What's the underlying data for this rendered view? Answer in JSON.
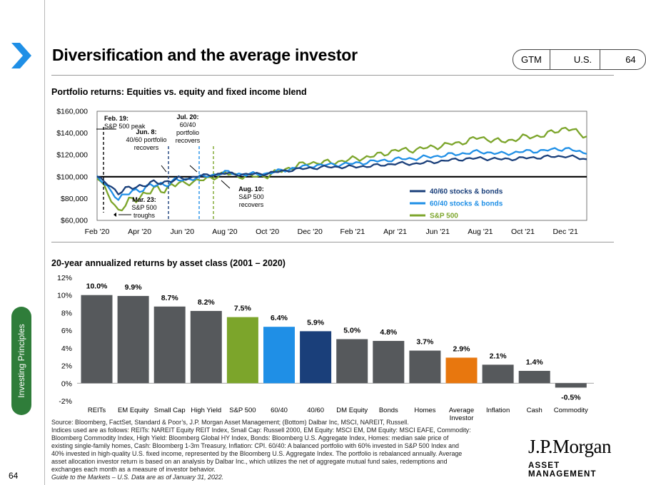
{
  "header": {
    "title": "Diversification and the average investor",
    "tags": [
      "GTM",
      "U.S.",
      "64"
    ]
  },
  "sidebar": {
    "tab_label": "Investing Principles",
    "page_number": "64"
  },
  "top_section": {
    "heading": "Portfolio returns: Equities vs. equity and fixed income blend"
  },
  "bottom_section": {
    "heading": "20-year annualized returns by asset class (2001 – 2020)"
  },
  "footer": {
    "source_lines": [
      "Source: Bloomberg, FactSet, Standard & Poor’s, J.P. Morgan Asset Management; (Bottom) Dalbar Inc, MSCI, NAREIT, Russell.",
      "Indices used are as follows: REITs: NAREIT Equity REIT Index, Small Cap: Russell 2000, EM Equity: MSCI EM, DM Equity: MSCI EAFE, Commodity:",
      "Bloomberg Commodity Index, High Yield: Bloomberg Global HY Index, Bonds: Bloomberg U.S. Aggregate Index, Homes: median sale price of",
      "existing single-family homes, Cash: Bloomberg 1-3m Treasury, Inflation: CPI. 60/40: A balanced portfolio with 60% invested in S&P 500 Index and",
      "40% invested in high-quality U.S. fixed income, represented by the Bloomberg U.S. Aggregate Index. The portfolio is rebalanced annually. Average",
      "asset allocation investor return is based on an analysis by Dalbar Inc., which utilizes the net of aggregate mutual fund sales, redemptions and",
      "exchanges each month as a measure of investor behavior."
    ],
    "as_of": "Guide to the Markets – U.S. Data are as of January 31, 2022.",
    "logo_name": "J.P.Morgan",
    "logo_sub": "ASSET MANAGEMENT"
  },
  "colors": {
    "dark_blue": "#1a3f7a",
    "light_blue": "#1f8fe6",
    "green": "#7ca52b",
    "gray_bar": "#56595c",
    "orange": "#e8770e",
    "sidebar_green": "#2f7d3a",
    "chevron_blue": "#1f8fe6"
  },
  "chart_data": [
    {
      "type": "line",
      "title": "Portfolio returns: Equities vs. equity and fixed income blend",
      "ylim": [
        60000,
        160000
      ],
      "yticks": [
        "$60,000",
        "$80,000",
        "$100,000",
        "$120,000",
        "$140,000",
        "$160,000"
      ],
      "xticks": [
        "Feb '20",
        "Apr '20",
        "Jun '20",
        "Aug '20",
        "Oct '20",
        "Dec '20",
        "Feb '21",
        "Apr '21",
        "Jun '21",
        "Aug '21",
        "Oct '21",
        "Dec '21"
      ],
      "x_months": [
        "Feb '20",
        "Mar '20",
        "Apr '20",
        "May '20",
        "Jun '20",
        "Jul '20",
        "Aug '20",
        "Sep '20",
        "Oct '20",
        "Nov '20",
        "Dec '20",
        "Jan '21",
        "Feb '21",
        "Mar '21",
        "Apr '21",
        "May '21",
        "Jun '21",
        "Jul '21",
        "Aug '21",
        "Sep '21",
        "Oct '21",
        "Nov '21",
        "Dec '21",
        "Jan '22"
      ],
      "baseline": 100000,
      "series": [
        {
          "name": "40/60 stocks & bonds",
          "color": "#1a3f7a",
          "values": [
            100000,
            86000,
            92000,
            95000,
            98000,
            101000,
            103000,
            102000,
            103000,
            106000,
            108000,
            109000,
            109000,
            110000,
            112000,
            112000,
            114000,
            116000,
            117000,
            116000,
            117000,
            118000,
            119000,
            116000
          ]
        },
        {
          "name": "60/40 stocks & bonds",
          "color": "#1f8fe6",
          "values": [
            100000,
            80000,
            89000,
            93000,
            97000,
            100000,
            104000,
            102000,
            103000,
            107000,
            110000,
            111000,
            112000,
            114000,
            116000,
            117000,
            119000,
            121000,
            123000,
            121000,
            123000,
            124000,
            126000,
            121000
          ]
        },
        {
          "name": "S&P 500",
          "color": "#7ca52b",
          "values": [
            100000,
            69000,
            83000,
            89000,
            94000,
            97000,
            103000,
            100000,
            101000,
            108000,
            113000,
            113000,
            116000,
            119000,
            124000,
            125000,
            128000,
            131000,
            136000,
            132000,
            136000,
            138000,
            145000,
            137000
          ]
        }
      ],
      "annotations": [
        {
          "text": [
            "Feb. 19:",
            "S&P 500 peak"
          ]
        },
        {
          "text": [
            "Mar. 23:",
            "S&P 500",
            "troughs"
          ]
        },
        {
          "text": [
            "Jun. 8:",
            "40/60 portfolio",
            "recovers"
          ]
        },
        {
          "text": [
            "Jul. 20:",
            "60/40",
            "portfolio",
            "recovers"
          ]
        },
        {
          "text": [
            "Aug. 10:",
            "S&P 500",
            "recovers"
          ]
        }
      ],
      "legend_position": "bottom-right"
    },
    {
      "type": "bar",
      "title": "20-year annualized returns by asset class (2001 – 2020)",
      "ylim": [
        -2,
        12
      ],
      "yticks": [
        "-2%",
        "0%",
        "2%",
        "4%",
        "6%",
        "8%",
        "10%",
        "12%"
      ],
      "categories": [
        "REITs",
        "EM Equity",
        "Small Cap",
        "High Yield",
        "S&P 500",
        "60/40",
        "40/60",
        "DM Equity",
        "Bonds",
        "Homes",
        "Average Investor",
        "Inflation",
        "Cash",
        "Commodity"
      ],
      "values": [
        10.0,
        9.9,
        8.7,
        8.2,
        7.5,
        6.4,
        5.9,
        5.0,
        4.8,
        3.7,
        2.9,
        2.1,
        1.4,
        -0.5
      ],
      "labels": [
        "10.0%",
        "9.9%",
        "8.7%",
        "8.2%",
        "7.5%",
        "6.4%",
        "5.9%",
        "5.0%",
        "4.8%",
        "3.7%",
        "2.9%",
        "2.1%",
        "1.4%",
        "-0.5%"
      ],
      "bar_colors": [
        "#56595c",
        "#56595c",
        "#56595c",
        "#56595c",
        "#7ca52b",
        "#1f8fe6",
        "#1a3f7a",
        "#56595c",
        "#56595c",
        "#56595c",
        "#e8770e",
        "#56595c",
        "#56595c",
        "#56595c"
      ]
    }
  ]
}
